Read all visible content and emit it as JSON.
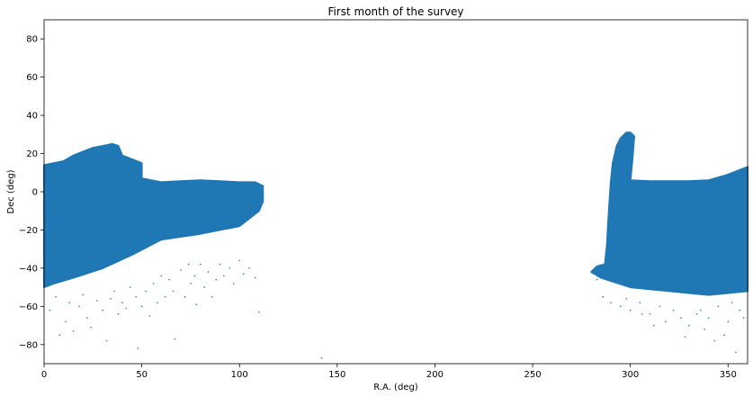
{
  "chart_data": {
    "type": "scatter",
    "title": "First month of the survey",
    "xlabel": "R.A. (deg)",
    "ylabel": "Dec (deg)",
    "xlim": [
      0,
      360
    ],
    "ylim": [
      -90,
      90
    ],
    "xticks": [
      0,
      50,
      100,
      150,
      200,
      250,
      300,
      350
    ],
    "yticks": [
      -80,
      -60,
      -40,
      -20,
      0,
      20,
      40,
      60,
      80
    ],
    "grid": false,
    "color": "#1f77b4",
    "series": [
      {
        "regions": [
          {
            "name": "west-dense-region",
            "polygon": [
              [
                0,
                14
              ],
              [
                5,
                15
              ],
              [
                10,
                16
              ],
              [
                15,
                19
              ],
              [
                20,
                21
              ],
              [
                25,
                23
              ],
              [
                30,
                24
              ],
              [
                35,
                25
              ],
              [
                38,
                24
              ],
              [
                40,
                19
              ],
              [
                45,
                17
              ],
              [
                50,
                15
              ],
              [
                50,
                7
              ],
              [
                55,
                6
              ],
              [
                60,
                5
              ],
              [
                70,
                5.5
              ],
              [
                80,
                6
              ],
              [
                90,
                5.5
              ],
              [
                100,
                5
              ],
              [
                108,
                5
              ],
              [
                112,
                3
              ],
              [
                112,
                -5
              ],
              [
                110,
                -10
              ],
              [
                100,
                -18
              ],
              [
                80,
                -22
              ],
              [
                60,
                -25
              ],
              [
                45,
                -33
              ],
              [
                30,
                -40
              ],
              [
                15,
                -45
              ],
              [
                5,
                -48
              ],
              [
                0,
                -50
              ]
            ]
          },
          {
            "name": "east-dense-region",
            "polygon": [
              [
                283,
                -39
              ],
              [
                287,
                -38
              ],
              [
                288,
                -28
              ],
              [
                289,
                -10
              ],
              [
                290,
                5
              ],
              [
                300,
                6
              ],
              [
                310,
                5.5
              ],
              [
                320,
                5.5
              ],
              [
                330,
                5.5
              ],
              [
                340,
                6
              ],
              [
                350,
                9
              ],
              [
                355,
                11
              ],
              [
                360,
                13
              ],
              [
                360,
                -52
              ],
              [
                340,
                -54
              ],
              [
                320,
                -52
              ],
              [
                300,
                -50
              ],
              [
                285,
                -45
              ],
              [
                280,
                -42
              ]
            ]
          },
          {
            "name": "east-northern-extension",
            "polygon": [
              [
                290,
                5
              ],
              [
                291,
                15
              ],
              [
                293,
                24
              ],
              [
                295,
                28
              ],
              [
                298,
                31
              ],
              [
                300,
                31
              ],
              [
                302,
                29
              ],
              [
                301,
                16
              ],
              [
                300,
                6
              ]
            ]
          }
        ],
        "sparse_points": [
          [
            3,
            -62
          ],
          [
            6,
            -55
          ],
          [
            8,
            -75
          ],
          [
            11,
            -68
          ],
          [
            13,
            -58
          ],
          [
            15,
            -73
          ],
          [
            18,
            -60
          ],
          [
            20,
            -54
          ],
          [
            22,
            -66
          ],
          [
            24,
            -71
          ],
          [
            27,
            -57
          ],
          [
            30,
            -62
          ],
          [
            32,
            -78
          ],
          [
            34,
            -56
          ],
          [
            36,
            -52
          ],
          [
            38,
            -64
          ],
          [
            40,
            -58
          ],
          [
            42,
            -61
          ],
          [
            44,
            -50
          ],
          [
            47,
            -55
          ],
          [
            48,
            -82
          ],
          [
            50,
            -60
          ],
          [
            52,
            -52
          ],
          [
            54,
            -65
          ],
          [
            56,
            -48
          ],
          [
            58,
            -58
          ],
          [
            60,
            -44
          ],
          [
            62,
            -55
          ],
          [
            64,
            -46
          ],
          [
            66,
            -52
          ],
          [
            67,
            -77
          ],
          [
            70,
            -41
          ],
          [
            72,
            -55
          ],
          [
            74,
            -38
          ],
          [
            75,
            -48
          ],
          [
            77,
            -44
          ],
          [
            78,
            -59
          ],
          [
            80,
            -38
          ],
          [
            82,
            -50
          ],
          [
            84,
            -42
          ],
          [
            86,
            -55
          ],
          [
            88,
            -46
          ],
          [
            90,
            -38
          ],
          [
            92,
            -44
          ],
          [
            95,
            -40
          ],
          [
            97,
            -48
          ],
          [
            100,
            -36
          ],
          [
            102,
            -43
          ],
          [
            105,
            -40
          ],
          [
            108,
            -45
          ],
          [
            110,
            -63
          ],
          [
            142,
            -87
          ],
          [
            283,
            -46
          ],
          [
            286,
            -55
          ],
          [
            290,
            -58
          ],
          [
            295,
            -60
          ],
          [
            300,
            -62
          ],
          [
            305,
            -58
          ],
          [
            310,
            -64
          ],
          [
            315,
            -60
          ],
          [
            318,
            -68
          ],
          [
            322,
            -62
          ],
          [
            326,
            -66
          ],
          [
            330,
            -70
          ],
          [
            334,
            -64
          ],
          [
            338,
            -72
          ],
          [
            340,
            -66
          ],
          [
            345,
            -60
          ],
          [
            348,
            -75
          ],
          [
            350,
            -68
          ],
          [
            352,
            -58
          ],
          [
            354,
            -84
          ],
          [
            356,
            -62
          ],
          [
            358,
            -66
          ],
          [
            343,
            -78
          ],
          [
            336,
            -62
          ],
          [
            328,
            -76
          ],
          [
            312,
            -70
          ],
          [
            306,
            -64
          ],
          [
            298,
            -56
          ]
        ]
      }
    ]
  }
}
